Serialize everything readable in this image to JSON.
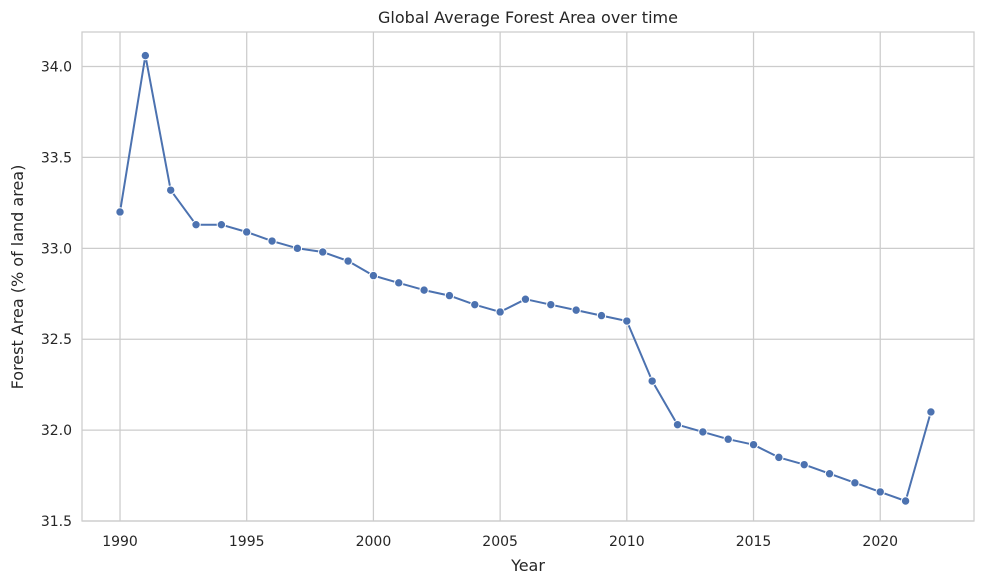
{
  "chart_data": {
    "type": "line",
    "title": "Global Average Forest Area over time",
    "xlabel": "Year",
    "ylabel": "Forest Area (% of land area)",
    "xlim": [
      1988.5,
      2023.7
    ],
    "ylim": [
      31.5,
      34.19
    ],
    "xticks": [
      1990,
      1995,
      2000,
      2005,
      2010,
      2015,
      2020
    ],
    "yticks": [
      31.5,
      32.0,
      32.5,
      33.0,
      33.5,
      34.0
    ],
    "ytick_labels": [
      "31.5",
      "32.0",
      "32.5",
      "33.0",
      "33.5",
      "34.0"
    ],
    "grid": true,
    "line_color": "#4c72b0",
    "series": [
      {
        "x": [
          1990,
          1991,
          1992,
          1993,
          1994,
          1995,
          1996,
          1997,
          1998,
          1999,
          2000,
          2001,
          2002,
          2003,
          2004,
          2005,
          2006,
          2007,
          2008,
          2009,
          2010,
          2011,
          2012,
          2013,
          2014,
          2015,
          2016,
          2017,
          2018,
          2019,
          2020,
          2021,
          2022
        ],
        "values": [
          33.2,
          34.06,
          33.32,
          33.13,
          33.13,
          33.09,
          33.04,
          33.0,
          32.98,
          32.93,
          32.85,
          32.81,
          32.77,
          32.74,
          32.69,
          32.65,
          32.72,
          32.69,
          32.66,
          32.63,
          32.6,
          32.27,
          32.03,
          31.99,
          31.95,
          31.92,
          31.85,
          31.81,
          31.76,
          31.71,
          31.66,
          31.61,
          32.1
        ]
      }
    ]
  }
}
